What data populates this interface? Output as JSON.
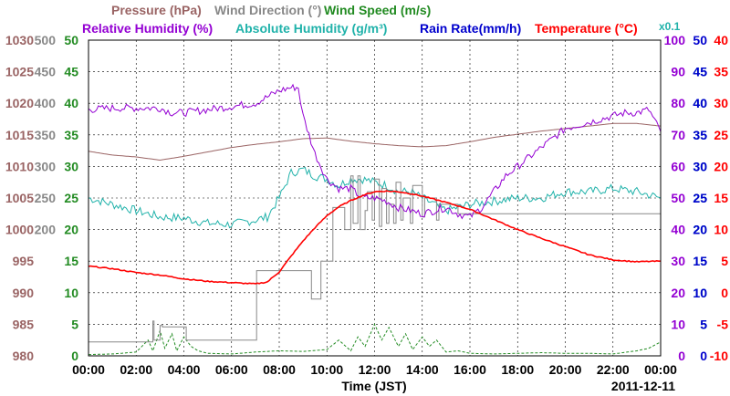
{
  "chart_data": {
    "type": "line",
    "xlabel": "Time (JST)",
    "date_label": "2011-12-11",
    "x_ticks": [
      "00:00",
      "02:00",
      "04:00",
      "06:00",
      "08:00",
      "10:00",
      "12:00",
      "14:00",
      "16:00",
      "18:00",
      "20:00",
      "22:00",
      "00:00"
    ],
    "x_range_hours": [
      0,
      24
    ],
    "grid": true,
    "header": {
      "row1": [
        {
          "text": "Pressure (hPa)",
          "color": "#9a6464"
        },
        {
          "text": "Wind Direction (°)",
          "color": "#888888"
        },
        {
          "text": "Wind Speed (m/s)",
          "color": "#228b22"
        }
      ],
      "row2": [
        {
          "text": "Relative Humidity (%)",
          "color": "#9400d3"
        },
        {
          "text": "Absolute Humidity (g/m³)",
          "color": "#20b2aa"
        },
        {
          "text": "Rain Rate(mm/h)",
          "color": "#0000cd"
        },
        {
          "text": "Temperature (°C)",
          "color": "#ff0000"
        }
      ],
      "abs_hum_scale": "x0.1"
    },
    "axes": [
      {
        "name": "Pressure (hPa)",
        "side": "left",
        "color": "#9a6464",
        "range": [
          980,
          1030
        ],
        "ticks": [
          "980",
          "985",
          "990",
          "995",
          "1000",
          "1005",
          "1010",
          "1015",
          "1020",
          "1025",
          "1030"
        ]
      },
      {
        "name": "Wind Direction",
        "side": "left",
        "color": "#888888",
        "range": [
          0,
          500
        ],
        "ticks": [
          "",
          "",
          "",
          "",
          "200",
          "250",
          "300",
          "350",
          "400",
          "450",
          "500"
        ]
      },
      {
        "name": "Wind Speed (m/s)",
        "side": "left",
        "color": "#228b22",
        "range": [
          0,
          50
        ],
        "ticks": [
          "0",
          "5",
          "10",
          "15",
          "20",
          "25",
          "30",
          "35",
          "40",
          "45",
          "50"
        ]
      },
      {
        "name": "Relative Humidity (%)",
        "side": "right",
        "color": "#9400d3",
        "range": [
          0,
          100
        ],
        "ticks": [
          "0",
          "10",
          "20",
          "30",
          "40",
          "50",
          "60",
          "70",
          "80",
          "90",
          "100"
        ]
      },
      {
        "name": "Absolute Humidity (x0.1)",
        "side": "right",
        "color": "#20b2aa",
        "range": [
          0,
          50
        ],
        "ticks": [
          "",
          "5",
          "10",
          "15",
          "20",
          "25",
          "30",
          "35",
          "40",
          "45",
          ""
        ]
      },
      {
        "name": "Rain Rate(mm/h)",
        "side": "right",
        "color": "#0000cd",
        "range": [
          0,
          50
        ],
        "ticks": [
          "0",
          "5",
          "10",
          "15",
          "20",
          "25",
          "30",
          "35",
          "40",
          "45",
          "50"
        ]
      },
      {
        "name": "Temperature (°C)",
        "side": "right",
        "color": "#ff0000",
        "range": [
          -10,
          40
        ],
        "ticks": [
          "-10",
          "-5",
          "0",
          "5",
          "10",
          "15",
          "20",
          "25",
          "30",
          "35",
          "40"
        ]
      }
    ],
    "series": [
      {
        "name": "Pressure (hPa)",
        "color": "#9a6464",
        "axis": 0,
        "jitter": 0,
        "x": [
          0,
          1,
          2,
          3,
          4,
          5,
          6,
          7,
          8,
          9,
          10,
          11,
          12,
          13,
          14,
          15,
          16,
          17,
          18,
          19,
          20,
          21,
          22,
          23,
          24
        ],
        "y": [
          1012.4,
          1011.8,
          1011.5,
          1011.0,
          1011.6,
          1012.3,
          1013.0,
          1013.5,
          1013.9,
          1014.4,
          1014.5,
          1014.0,
          1013.6,
          1013.3,
          1013.1,
          1013.3,
          1013.9,
          1014.6,
          1015.1,
          1015.6,
          1016.0,
          1016.4,
          1016.8,
          1016.8,
          1016.4
        ]
      },
      {
        "name": "Relative Humidity (%)",
        "color": "#9400d3",
        "axis": 3,
        "jitter": 1.2,
        "x": [
          0,
          1,
          2,
          3,
          3.5,
          4,
          5,
          6,
          7,
          8,
          8.5,
          8.8,
          9,
          9.5,
          10,
          10.5,
          11,
          11.5,
          12,
          12.5,
          13,
          13.5,
          14,
          14.5,
          15,
          15.5,
          16,
          16.5,
          17,
          17.5,
          18,
          18.5,
          19,
          20,
          21,
          22,
          22.5,
          23,
          23.5,
          24
        ],
        "y": [
          78,
          78.5,
          78.5,
          78.5,
          77,
          77,
          78,
          79,
          80,
          84,
          85,
          85,
          76,
          64,
          56,
          53,
          53,
          50,
          50,
          49,
          47,
          46,
          45,
          46,
          47,
          45,
          44,
          47,
          52,
          57,
          60,
          63,
          66,
          72,
          74,
          76,
          77,
          77,
          78,
          71
        ]
      },
      {
        "name": "Absolute Humidity (x0.1)",
        "color": "#20b2aa",
        "axis": 4,
        "jitter": 0.7,
        "x": [
          0,
          1,
          2,
          3,
          4,
          5,
          6,
          7,
          7.5,
          8,
          8.5,
          9,
          9.5,
          10,
          10.5,
          11,
          11.5,
          12,
          12.5,
          13,
          13.5,
          14,
          15,
          16,
          17,
          18,
          19,
          20,
          21,
          22,
          23,
          24
        ],
        "y": [
          25,
          24,
          23,
          22,
          21.8,
          21,
          20.8,
          21.5,
          22,
          25,
          29,
          29.5,
          28.5,
          28,
          27,
          28,
          28,
          27.5,
          27,
          26,
          26,
          25,
          23,
          24,
          24.5,
          25,
          25,
          26,
          26,
          26.5,
          26,
          25
        ]
      },
      {
        "name": "Temperature (°C)",
        "color": "#ff0000",
        "axis": 6,
        "jitter": 0.08,
        "x": [
          0,
          1,
          2,
          3,
          4,
          5,
          6,
          7,
          7.5,
          8,
          8.5,
          9,
          9.5,
          10,
          10.5,
          11,
          11.5,
          12,
          12.5,
          13,
          13.5,
          14,
          15,
          16,
          17,
          18,
          19,
          20,
          21,
          22,
          23,
          24
        ],
        "y": [
          4.2,
          3.8,
          3.2,
          2.8,
          2.2,
          1.8,
          1.6,
          1.4,
          1.7,
          3.3,
          5.8,
          8.2,
          10.3,
          12.2,
          13.6,
          14.6,
          15.4,
          16.0,
          16.1,
          16.0,
          15.7,
          15.3,
          14.3,
          13.2,
          11.6,
          10.0,
          8.6,
          7.3,
          6.0,
          5.2,
          4.9,
          5.0
        ]
      },
      {
        "name": "Wind Direction (°)",
        "color": "#888888",
        "axis": 1,
        "jitter": 0,
        "step": true,
        "x": [
          0,
          2.6,
          2.7,
          2.75,
          3,
          3.1,
          4,
          4.1,
          7,
          7.05,
          9.3,
          9.35,
          9.7,
          9.75,
          10.2,
          10.25,
          10.7,
          10.75,
          11,
          11.1,
          11.3,
          11.4,
          11.6,
          11.7,
          11.9,
          12,
          12.2,
          12.3,
          12.5,
          12.6,
          12.8,
          12.9,
          13.1,
          13.2,
          13.5,
          13.6,
          14,
          14.1,
          14.6,
          14.7,
          15.5,
          15.6,
          24
        ],
        "y": [
          22,
          22,
          55,
          25,
          48,
          46,
          46,
          25,
          25,
          135,
          135,
          90,
          90,
          150,
          150,
          235,
          235,
          200,
          285,
          210,
          285,
          200,
          230,
          260,
          215,
          280,
          205,
          265,
          210,
          240,
          210,
          275,
          215,
          250,
          210,
          270,
          220,
          250,
          215,
          240,
          225,
          225,
          225
        ]
      },
      {
        "name": "Wind Speed (m/s)",
        "color": "#228b22",
        "axis": 2,
        "jitter": 0,
        "dashed": true,
        "x": [
          0,
          1,
          2,
          2.5,
          2.7,
          3,
          3.2,
          3.5,
          3.7,
          4,
          4.3,
          4.6,
          5,
          6,
          7,
          8,
          9,
          10,
          10.5,
          11,
          11.3,
          11.6,
          12,
          12.3,
          12.6,
          13,
          13.3,
          13.6,
          14,
          14.3,
          14.6,
          15,
          15.5,
          16,
          17,
          18,
          19,
          20,
          21,
          22,
          23,
          23.5,
          24
        ],
        "y": [
          0.2,
          0.3,
          0.6,
          2.5,
          0.8,
          4,
          1.2,
          3.5,
          0.8,
          3,
          1.5,
          0.8,
          0.4,
          0.3,
          0.6,
          0.8,
          0.7,
          1,
          2.5,
          0.8,
          3,
          1.5,
          5,
          2.5,
          4.5,
          1.5,
          3.5,
          1,
          3,
          1.5,
          2.5,
          0.6,
          0.8,
          0.4,
          0.3,
          0.4,
          0.5,
          0.4,
          0.4,
          0.3,
          0.8,
          1.2,
          2.2
        ]
      }
    ]
  }
}
